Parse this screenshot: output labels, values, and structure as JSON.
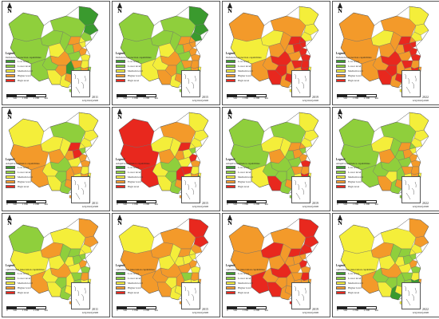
{
  "colors": {
    "low": "#3a9a2e",
    "lower": "#8fcf3c",
    "medium": "#f4ee3a",
    "higher": "#f39a2a",
    "high": "#e8281e"
  },
  "legend_heading": "Legend",
  "level_labels": [
    "Low level",
    "Lower level",
    "Medium level",
    "Higher level",
    "High level"
  ],
  "scale_labels": [
    "0",
    "500",
    "1 000",
    "2 000",
    "km"
  ],
  "map_code": "GS(2022)4308",
  "north_label": "N",
  "panels": [
    {
      "row": 1,
      "year": "2011",
      "capability": "Defensive protection capabilities",
      "regions": [
        "low",
        "low",
        "lower",
        "lower",
        "lower",
        "lower",
        "lower",
        "medium",
        "lower",
        "higher",
        "lower",
        "higher",
        "medium",
        "medium",
        "higher",
        "lower",
        "medium",
        "higher",
        "higher",
        "medium",
        "low",
        "lower",
        "higher",
        "lower",
        "higher",
        "higher",
        "lower",
        "medium",
        "medium",
        "higher",
        "lower",
        "lower"
      ]
    },
    {
      "row": 1,
      "year": "2015",
      "capability": "Defensive protection capabilities",
      "regions": [
        "low",
        "low",
        "low",
        "lower",
        "lower",
        "lower",
        "lower",
        "medium",
        "lower",
        "higher",
        "lower",
        "higher",
        "higher",
        "higher",
        "higher",
        "lower",
        "higher",
        "higher",
        "higher",
        "higher",
        "lower",
        "lower",
        "higher",
        "medium",
        "higher",
        "higher",
        "medium",
        "higher",
        "medium",
        "higher",
        "lower",
        "medium"
      ]
    },
    {
      "row": 1,
      "year": "2019",
      "capability": "Defensive protection capabilities",
      "regions": [
        "medium",
        "medium",
        "medium",
        "higher",
        "higher",
        "medium",
        "medium",
        "higher",
        "higher",
        "high",
        "higher",
        "high",
        "high",
        "high",
        "high",
        "higher",
        "high",
        "high",
        "high",
        "high",
        "higher",
        "higher",
        "high",
        "higher",
        "high",
        "high",
        "higher",
        "high",
        "higher",
        "high",
        "medium",
        "medium"
      ]
    },
    {
      "row": 1,
      "year": "2022",
      "capability": "Defensive protection capabilities",
      "regions": [
        "medium",
        "medium",
        "medium",
        "higher",
        "higher",
        "medium",
        "higher",
        "higher",
        "higher",
        "high",
        "higher",
        "high",
        "high",
        "higher",
        "high",
        "higher",
        "high",
        "high",
        "high",
        "higher",
        "higher",
        "higher",
        "high",
        "higher",
        "high",
        "high",
        "higher",
        "high",
        "higher",
        "high",
        "medium",
        "higher"
      ]
    },
    {
      "row": 2,
      "year": "2011",
      "capability": "Adaptive resilience capabilities",
      "regions": [
        "medium",
        "medium",
        "medium",
        "lower",
        "medium",
        "medium",
        "higher",
        "higher",
        "medium",
        "high",
        "higher",
        "high",
        "lower",
        "medium",
        "higher",
        "medium",
        "higher",
        "lower",
        "higher",
        "medium",
        "higher",
        "medium",
        "higher",
        "medium",
        "lower",
        "higher",
        "higher",
        "medium",
        "lower",
        "medium",
        "higher",
        "medium"
      ]
    },
    {
      "row": 2,
      "year": "2015",
      "capability": "Adaptive resilience capabilities",
      "regions": [
        "medium",
        "medium",
        "medium",
        "higher",
        "high",
        "medium",
        "high",
        "higher",
        "medium",
        "high",
        "higher",
        "medium",
        "lower",
        "medium",
        "high",
        "medium",
        "higher",
        "lower",
        "high",
        "medium",
        "high",
        "medium",
        "higher",
        "medium",
        "lower",
        "higher",
        "high",
        "medium",
        "lower",
        "lower",
        "higher",
        "medium"
      ]
    },
    {
      "row": 2,
      "year": "2019",
      "capability": "Adaptive resilience capabilities",
      "regions": [
        "medium",
        "medium",
        "medium",
        "lower",
        "lower",
        "medium",
        "lower",
        "higher",
        "medium",
        "higher",
        "lower",
        "higher",
        "lower",
        "higher",
        "higher",
        "lower",
        "high",
        "lower",
        "higher",
        "higher",
        "lower",
        "medium",
        "high",
        "lower",
        "lower",
        "higher",
        "medium",
        "high",
        "lower",
        "medium",
        "lower",
        "medium"
      ]
    },
    {
      "row": 2,
      "year": "2022",
      "capability": "Adaptive resilience capabilities",
      "regions": [
        "medium",
        "medium",
        "medium",
        "lower",
        "lower",
        "medium",
        "lower",
        "higher",
        "lower",
        "higher",
        "lower",
        "higher",
        "medium",
        "lower",
        "higher",
        "lower",
        "higher",
        "lower",
        "higher",
        "higher",
        "lower",
        "medium",
        "higher",
        "lower",
        "medium",
        "higher",
        "lower",
        "higher",
        "lower",
        "medium",
        "lower",
        "medium"
      ]
    },
    {
      "row": 3,
      "year": "2011",
      "capability": "optimization innovation capabilities",
      "regions": [
        "higher",
        "higher",
        "medium",
        "medium",
        "lower",
        "higher",
        "medium",
        "medium",
        "lower",
        "lower",
        "medium",
        "lower",
        "lower",
        "medium",
        "higher",
        "medium",
        "lower",
        "higher",
        "lower",
        "higher",
        "medium",
        "lower",
        "medium",
        "medium",
        "lower",
        "medium",
        "higher",
        "medium",
        "lower",
        "medium",
        "higher",
        "medium"
      ]
    },
    {
      "row": 3,
      "year": "2015",
      "capability": "optimization innovation capabilities",
      "regions": [
        "high",
        "high",
        "higher",
        "higher",
        "medium",
        "higher",
        "higher",
        "medium",
        "medium",
        "higher",
        "medium",
        "medium",
        "medium",
        "medium",
        "higher",
        "higher",
        "medium",
        "higher",
        "lower",
        "higher",
        "higher",
        "medium",
        "medium",
        "higher",
        "medium",
        "medium",
        "higher",
        "higher",
        "medium",
        "medium",
        "higher",
        "higher"
      ]
    },
    {
      "row": 3,
      "year": "2019",
      "capability": "optimization innovation capabilities",
      "regions": [
        "high",
        "high",
        "high",
        "higher",
        "higher",
        "high",
        "higher",
        "higher",
        "higher",
        "high",
        "higher",
        "higher",
        "higher",
        "high",
        "high",
        "higher",
        "higher",
        "high",
        "higher",
        "high",
        "higher",
        "higher",
        "higher",
        "higher",
        "higher",
        "higher",
        "high",
        "high",
        "higher",
        "higher",
        "high",
        "higher"
      ]
    },
    {
      "row": 3,
      "year": "2022",
      "capability": "optimization innovation capabilities",
      "regions": [
        "higher",
        "higher",
        "medium",
        "medium",
        "medium",
        "higher",
        "medium",
        "medium",
        "lower",
        "lower",
        "medium",
        "lower",
        "lower",
        "medium",
        "higher",
        "medium",
        "lower",
        "higher",
        "lower",
        "medium",
        "lower",
        "lower",
        "low",
        "lower",
        "lower",
        "medium",
        "higher",
        "medium",
        "low",
        "medium",
        "medium",
        "higher"
      ]
    }
  ]
}
